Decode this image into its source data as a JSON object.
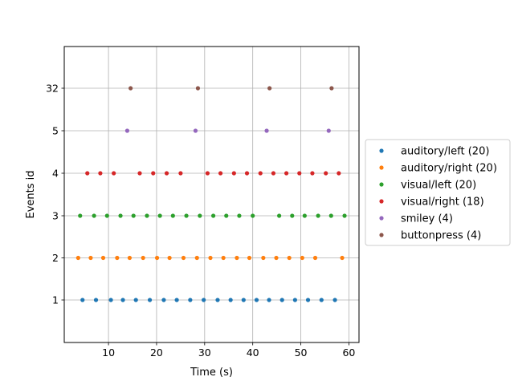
{
  "chart_data": {
    "type": "scatter",
    "xlabel": "Time (s)",
    "ylabel": "Events id",
    "xlim": [
      0.8,
      62.1
    ],
    "x_ticks": [
      10,
      20,
      30,
      40,
      50,
      60
    ],
    "y_rows": [
      "1",
      "2",
      "3",
      "4",
      "5",
      "32"
    ],
    "grid": true,
    "legend_position": "right",
    "series": [
      {
        "name": "auditory/left (20)",
        "color": "#1f77b4",
        "row": 0,
        "x": [
          4.6,
          7.4,
          10.5,
          13.0,
          15.7,
          18.6,
          21.5,
          24.2,
          27.0,
          29.8,
          32.7,
          35.4,
          38.1,
          40.8,
          43.4,
          46.1,
          48.8,
          51.5,
          54.3,
          57.1
        ]
      },
      {
        "name": "auditory/right (20)",
        "color": "#ff7f0e",
        "row": 1,
        "x": [
          3.7,
          6.3,
          8.9,
          11.8,
          14.4,
          17.2,
          20.1,
          22.7,
          25.6,
          28.4,
          31.2,
          33.9,
          36.7,
          39.3,
          42.2,
          44.9,
          47.6,
          50.3,
          53.0,
          58.6
        ]
      },
      {
        "name": "visual/left (20)",
        "color": "#2ca02c",
        "row": 2,
        "x": [
          4.1,
          7.0,
          9.7,
          12.5,
          15.2,
          18.0,
          20.7,
          23.4,
          26.2,
          29.0,
          31.8,
          34.5,
          37.2,
          40.0,
          45.5,
          48.2,
          50.8,
          53.6,
          56.3,
          59.1
        ]
      },
      {
        "name": "visual/right (18)",
        "color": "#d62728",
        "row": 3,
        "x": [
          5.6,
          8.3,
          11.1,
          16.5,
          19.3,
          22.1,
          25.0,
          30.6,
          33.3,
          36.1,
          38.8,
          41.6,
          44.3,
          47.0,
          49.7,
          52.4,
          55.2,
          57.9
        ]
      },
      {
        "name": "smiley (4)",
        "color": "#9467bd",
        "row": 4,
        "x": [
          13.9,
          28.1,
          42.9,
          55.8
        ]
      },
      {
        "name": "buttonpress (4)",
        "color": "#8c564b",
        "row": 5,
        "x": [
          14.6,
          28.6,
          43.5,
          56.4
        ]
      }
    ]
  }
}
